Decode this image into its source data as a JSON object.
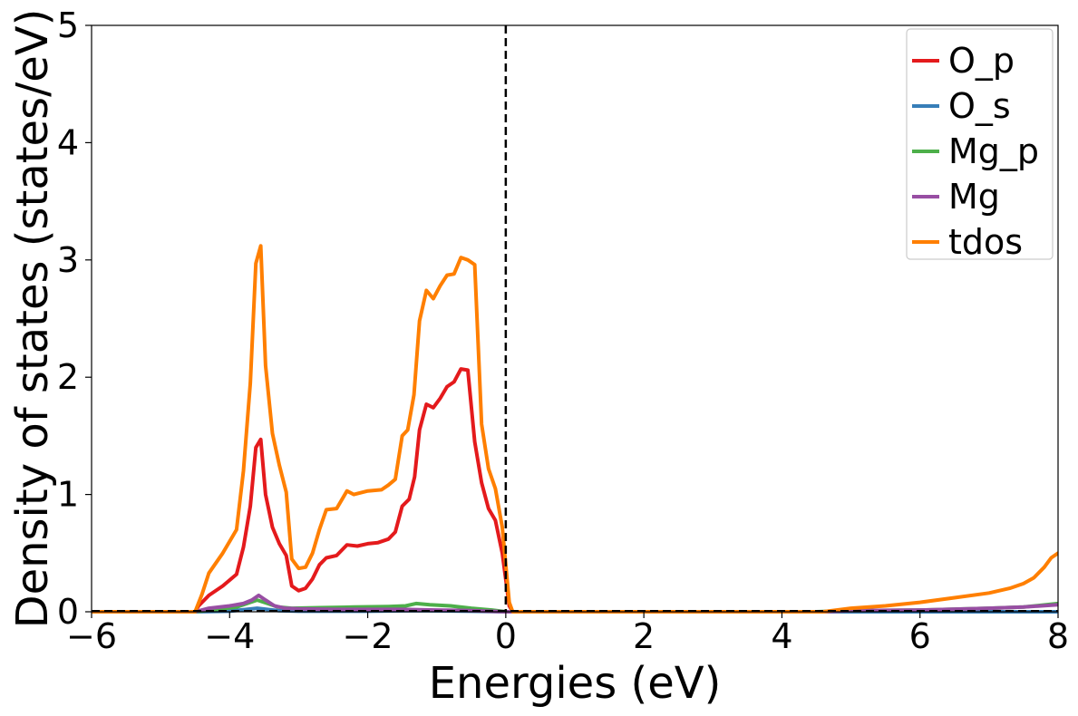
{
  "chart_data": {
    "type": "line",
    "xlabel": "Energies (eV)",
    "ylabel": "Density of states (states/eV)",
    "xlim": [
      -6,
      8
    ],
    "ylim": [
      0,
      5
    ],
    "xticks": [
      -6,
      -4,
      -2,
      0,
      2,
      4,
      6,
      8
    ],
    "xtick_labels": [
      "−6",
      "−4",
      "−2",
      "0",
      "2",
      "4",
      "6",
      "8"
    ],
    "yticks": [
      0,
      1,
      2,
      3,
      4,
      5
    ],
    "ytick_labels": [
      "0",
      "1",
      "2",
      "3",
      "4",
      "5"
    ],
    "grid": false,
    "legend_position": "top-right",
    "fermi_line": {
      "x": 0,
      "style": "dashed",
      "color": "#000000"
    },
    "zero_line": {
      "y": 0,
      "style": "dashed",
      "color": "#000000"
    },
    "series": [
      {
        "name": "O_p",
        "color": "#e41a1c",
        "points": [
          [
            -6,
            0
          ],
          [
            -4.5,
            0
          ],
          [
            -4.45,
            0.05
          ],
          [
            -4.3,
            0.14
          ],
          [
            -4.1,
            0.22
          ],
          [
            -3.9,
            0.32
          ],
          [
            -3.8,
            0.55
          ],
          [
            -3.7,
            0.9
          ],
          [
            -3.62,
            1.4
          ],
          [
            -3.55,
            1.47
          ],
          [
            -3.48,
            1.0
          ],
          [
            -3.38,
            0.72
          ],
          [
            -3.28,
            0.58
          ],
          [
            -3.18,
            0.48
          ],
          [
            -3.1,
            0.22
          ],
          [
            -3.0,
            0.18
          ],
          [
            -2.9,
            0.2
          ],
          [
            -2.8,
            0.28
          ],
          [
            -2.7,
            0.4
          ],
          [
            -2.6,
            0.46
          ],
          [
            -2.45,
            0.48
          ],
          [
            -2.3,
            0.57
          ],
          [
            -2.15,
            0.56
          ],
          [
            -2.0,
            0.58
          ],
          [
            -1.85,
            0.59
          ],
          [
            -1.7,
            0.62
          ],
          [
            -1.6,
            0.68
          ],
          [
            -1.5,
            0.9
          ],
          [
            -1.4,
            0.96
          ],
          [
            -1.32,
            1.15
          ],
          [
            -1.25,
            1.55
          ],
          [
            -1.15,
            1.77
          ],
          [
            -1.05,
            1.74
          ],
          [
            -0.95,
            1.82
          ],
          [
            -0.85,
            1.92
          ],
          [
            -0.75,
            1.96
          ],
          [
            -0.65,
            2.07
          ],
          [
            -0.55,
            2.06
          ],
          [
            -0.45,
            1.45
          ],
          [
            -0.35,
            1.1
          ],
          [
            -0.25,
            0.88
          ],
          [
            -0.15,
            0.78
          ],
          [
            -0.05,
            0.5
          ],
          [
            0.05,
            0.05
          ],
          [
            0.1,
            0
          ],
          [
            8,
            0
          ]
        ]
      },
      {
        "name": "O_s",
        "color": "#377eb8",
        "points": [
          [
            -6,
            0
          ],
          [
            -4.5,
            0
          ],
          [
            -4.0,
            0.005
          ],
          [
            -3.6,
            0.03
          ],
          [
            -3.3,
            0.01
          ],
          [
            -3.0,
            0.005
          ],
          [
            -2.0,
            0.005
          ],
          [
            -1.3,
            0.01
          ],
          [
            -0.5,
            0.005
          ],
          [
            0,
            0
          ],
          [
            8,
            0
          ]
        ]
      },
      {
        "name": "Mg_p",
        "color": "#4daf4a",
        "points": [
          [
            -6,
            0
          ],
          [
            -4.5,
            0
          ],
          [
            -4.2,
            0.02
          ],
          [
            -3.9,
            0.04
          ],
          [
            -3.7,
            0.08
          ],
          [
            -3.6,
            0.1
          ],
          [
            -3.45,
            0.07
          ],
          [
            -3.3,
            0.04
          ],
          [
            -3.1,
            0.03
          ],
          [
            -2.7,
            0.035
          ],
          [
            -2.2,
            0.04
          ],
          [
            -1.7,
            0.045
          ],
          [
            -1.45,
            0.05
          ],
          [
            -1.3,
            0.07
          ],
          [
            -1.1,
            0.06
          ],
          [
            -0.8,
            0.05
          ],
          [
            -0.5,
            0.03
          ],
          [
            -0.2,
            0.015
          ],
          [
            0,
            0
          ],
          [
            4.5,
            0
          ],
          [
            5.0,
            0.01
          ],
          [
            6.0,
            0.015
          ],
          [
            7.0,
            0.03
          ],
          [
            7.5,
            0.04
          ],
          [
            8,
            0.07
          ]
        ]
      },
      {
        "name": "Mg",
        "color": "#984ea3",
        "points": [
          [
            -6,
            0
          ],
          [
            -4.5,
            0
          ],
          [
            -4.3,
            0.03
          ],
          [
            -4.0,
            0.05
          ],
          [
            -3.8,
            0.07
          ],
          [
            -3.68,
            0.1
          ],
          [
            -3.58,
            0.14
          ],
          [
            -3.48,
            0.1
          ],
          [
            -3.35,
            0.05
          ],
          [
            -3.2,
            0.03
          ],
          [
            -3.0,
            0.025
          ],
          [
            -2.5,
            0.02
          ],
          [
            -2.0,
            0.02
          ],
          [
            -1.5,
            0.02
          ],
          [
            -1.0,
            0.015
          ],
          [
            -0.5,
            0.01
          ],
          [
            0,
            0
          ],
          [
            4.6,
            0
          ],
          [
            5.0,
            0.01
          ],
          [
            6.0,
            0.015
          ],
          [
            7.0,
            0.03
          ],
          [
            7.5,
            0.04
          ],
          [
            8,
            0.06
          ]
        ]
      },
      {
        "name": "tdos",
        "color": "#ff7f00",
        "points": [
          [
            -6,
            0
          ],
          [
            -4.5,
            0
          ],
          [
            -4.4,
            0.15
          ],
          [
            -4.3,
            0.33
          ],
          [
            -4.1,
            0.5
          ],
          [
            -3.9,
            0.7
          ],
          [
            -3.8,
            1.2
          ],
          [
            -3.7,
            1.95
          ],
          [
            -3.62,
            2.97
          ],
          [
            -3.55,
            3.12
          ],
          [
            -3.48,
            2.1
          ],
          [
            -3.38,
            1.52
          ],
          [
            -3.28,
            1.25
          ],
          [
            -3.18,
            1.02
          ],
          [
            -3.1,
            0.45
          ],
          [
            -3.0,
            0.37
          ],
          [
            -2.9,
            0.38
          ],
          [
            -2.8,
            0.5
          ],
          [
            -2.7,
            0.7
          ],
          [
            -2.6,
            0.87
          ],
          [
            -2.45,
            0.88
          ],
          [
            -2.3,
            1.03
          ],
          [
            -2.2,
            1.0
          ],
          [
            -2.0,
            1.03
          ],
          [
            -1.8,
            1.04
          ],
          [
            -1.7,
            1.08
          ],
          [
            -1.6,
            1.13
          ],
          [
            -1.5,
            1.5
          ],
          [
            -1.42,
            1.55
          ],
          [
            -1.33,
            1.85
          ],
          [
            -1.25,
            2.48
          ],
          [
            -1.15,
            2.74
          ],
          [
            -1.05,
            2.67
          ],
          [
            -0.95,
            2.78
          ],
          [
            -0.85,
            2.87
          ],
          [
            -0.75,
            2.88
          ],
          [
            -0.65,
            3.02
          ],
          [
            -0.55,
            3.0
          ],
          [
            -0.45,
            2.96
          ],
          [
            -0.35,
            1.6
          ],
          [
            -0.25,
            1.22
          ],
          [
            -0.15,
            1.05
          ],
          [
            -0.05,
            0.72
          ],
          [
            0.05,
            0.08
          ],
          [
            0.1,
            0
          ],
          [
            4.6,
            0
          ],
          [
            5.0,
            0.03
          ],
          [
            5.5,
            0.05
          ],
          [
            6.0,
            0.08
          ],
          [
            6.5,
            0.12
          ],
          [
            7.0,
            0.16
          ],
          [
            7.3,
            0.2
          ],
          [
            7.5,
            0.24
          ],
          [
            7.65,
            0.29
          ],
          [
            7.8,
            0.38
          ],
          [
            7.9,
            0.46
          ],
          [
            8,
            0.5
          ]
        ]
      }
    ]
  }
}
